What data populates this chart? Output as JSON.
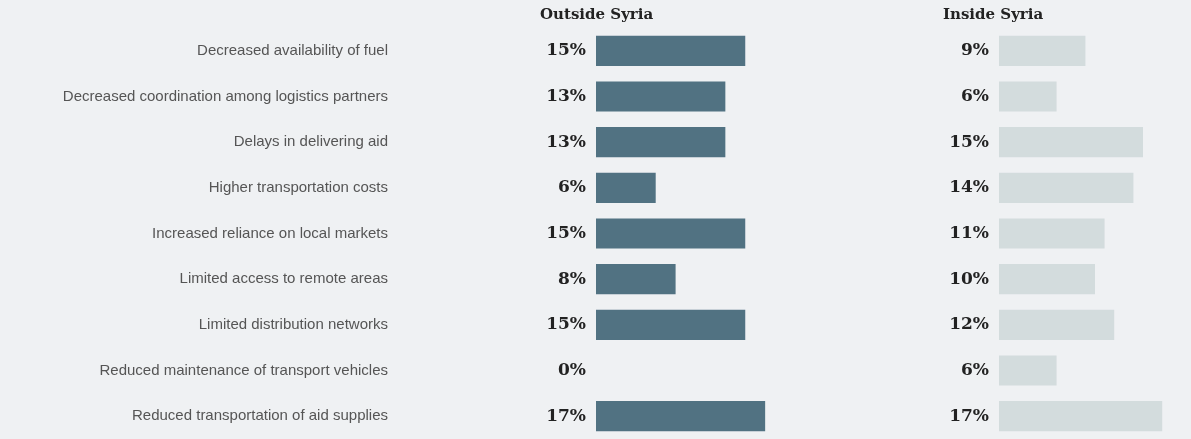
{
  "chart_data": [
    {
      "type": "bar",
      "orientation": "horizontal",
      "title": "Outside Syria",
      "categories": [
        "Decreased availability of fuel",
        "Decreased coordination among logistics partners",
        "Delays in delivering aid",
        "Higher transportation costs",
        "Increased reliance on local markets",
        "Limited access to remote areas",
        "Limited distribution networks",
        "Reduced maintenance of transport vehicles",
        "Reduced transportation of aid supplies"
      ],
      "values": [
        15,
        13,
        13,
        6,
        15,
        8,
        15,
        0,
        17
      ],
      "value_labels": [
        "15%",
        "13%",
        "13%",
        "6%",
        "15%",
        "8%",
        "15%",
        "0%",
        "17%"
      ],
      "color": "#517282",
      "legend": false
    },
    {
      "type": "bar",
      "orientation": "horizontal",
      "title": "Inside Syria",
      "tick_labels": false,
      "categories": [
        null,
        null,
        null,
        null,
        null,
        null,
        null,
        null,
        null
      ],
      "values": [
        9,
        6,
        15,
        14,
        11,
        10,
        12,
        6,
        17
      ],
      "value_labels": [
        "9%",
        "6%",
        "15%",
        "14%",
        "11%",
        "10%",
        "12%",
        "6%",
        "17%"
      ],
      "color": "#d3dcdd",
      "legend": false
    }
  ]
}
